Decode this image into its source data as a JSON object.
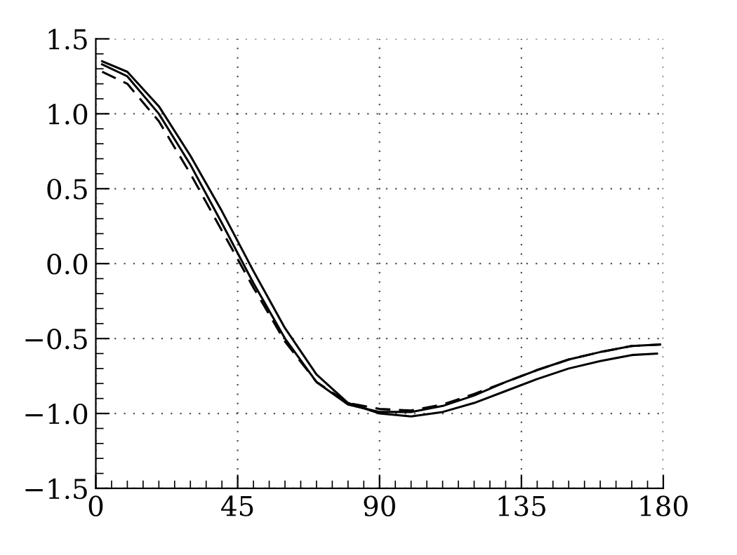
{
  "chart_data": {
    "type": "line",
    "xlim": [
      0,
      180
    ],
    "ylim": [
      -1.5,
      1.5
    ],
    "xticks": [
      0,
      45,
      90,
      135,
      180
    ],
    "yticks": [
      {
        "value": 1.5,
        "label": "1.5"
      },
      {
        "value": 1.0,
        "label": "1.0"
      },
      {
        "value": 0.5,
        "label": "0.5"
      },
      {
        "value": 0.0,
        "label": "0.0"
      },
      {
        "value": -0.5,
        "label": "−0.5"
      },
      {
        "value": -1.0,
        "label": "−1.0"
      },
      {
        "value": -1.5,
        "label": "−1.5"
      }
    ],
    "grid": true,
    "marker": "none",
    "series": [
      {
        "color": "#000000",
        "line_style": "solid",
        "x": [
          2,
          10,
          20,
          30,
          40,
          50,
          60,
          70,
          80,
          90,
          100,
          110,
          120,
          130,
          140,
          150,
          160,
          170,
          178
        ],
        "values": [
          1.35,
          1.28,
          1.05,
          0.72,
          0.35,
          -0.05,
          -0.43,
          -0.74,
          -0.93,
          -1.0,
          -1.02,
          -0.99,
          -0.93,
          -0.85,
          -0.77,
          -0.7,
          -0.65,
          -0.61,
          -0.6
        ]
      },
      {
        "color": "#000000",
        "line_style": "solid",
        "x": [
          2,
          10,
          20,
          30,
          40,
          50,
          60,
          70,
          80,
          90,
          100,
          110,
          120,
          130,
          140,
          150,
          160,
          170,
          179
        ],
        "values": [
          1.33,
          1.25,
          1.0,
          0.66,
          0.27,
          -0.13,
          -0.5,
          -0.79,
          -0.94,
          -0.99,
          -0.99,
          -0.95,
          -0.88,
          -0.79,
          -0.71,
          -0.64,
          -0.59,
          -0.55,
          -0.54
        ]
      },
      {
        "color": "#000000",
        "line_style": "dashed",
        "x": [
          2,
          10,
          20,
          30,
          40,
          50,
          60,
          70,
          80,
          90,
          100,
          110,
          120,
          130,
          140,
          150,
          160,
          170,
          179
        ],
        "values": [
          1.28,
          1.2,
          0.95,
          0.6,
          0.22,
          -0.16,
          -0.52,
          -0.79,
          -0.93,
          -0.97,
          -0.98,
          -0.94,
          -0.87,
          -0.79,
          -0.71,
          -0.64,
          -0.59,
          -0.55,
          -0.54
        ]
      }
    ]
  }
}
